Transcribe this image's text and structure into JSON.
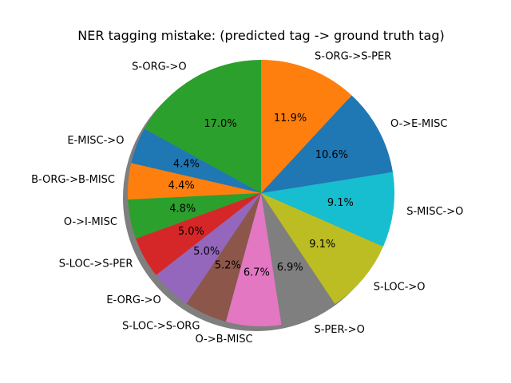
{
  "chart_data": {
    "type": "pie",
    "title": "NER tagging mistake: (predicted tag -> ground truth tag)",
    "shadow": true,
    "start_angle_deg": 90,
    "direction": "counterclockwise",
    "slices": [
      {
        "label": "S-ORG->O",
        "percent": 17.0,
        "color": "#2ca02c"
      },
      {
        "label": "E-MISC->O",
        "percent": 4.4,
        "color": "#1f77b4"
      },
      {
        "label": "B-ORG->B-MISC",
        "percent": 4.4,
        "color": "#ff7f0e"
      },
      {
        "label": "O->I-MISC",
        "percent": 4.8,
        "color": "#2ca02c"
      },
      {
        "label": "S-LOC->S-PER",
        "percent": 5.0,
        "color": "#d62728"
      },
      {
        "label": "E-ORG->O",
        "percent": 5.0,
        "color": "#9467bd"
      },
      {
        "label": "S-LOC->S-ORG",
        "percent": 5.2,
        "color": "#8c564b"
      },
      {
        "label": "O->B-MISC",
        "percent": 6.7,
        "color": "#e377c2"
      },
      {
        "label": "S-PER->O",
        "percent": 6.9,
        "color": "#7f7f7f"
      },
      {
        "label": "S-LOC->O",
        "percent": 9.1,
        "color": "#bcbd22"
      },
      {
        "label": "S-MISC->O",
        "percent": 9.1,
        "color": "#17becf"
      },
      {
        "label": "O->E-MISC",
        "percent": 10.6,
        "color": "#1f77b4"
      },
      {
        "label": "S-ORG->S-PER",
        "percent": 11.9,
        "color": "#ff7f0e"
      }
    ]
  }
}
